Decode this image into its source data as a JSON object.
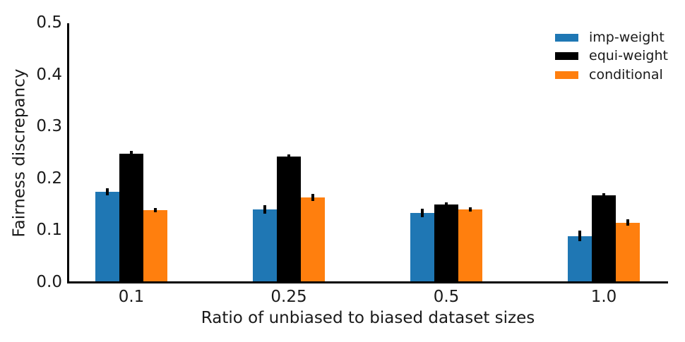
{
  "chart_data": {
    "type": "bar",
    "title": "",
    "xlabel": "Ratio of unbiased to biased dataset sizes",
    "ylabel": "Fairness discrepancy",
    "categories": [
      "0.1",
      "0.25",
      "0.5",
      "1.0"
    ],
    "series": [
      {
        "name": "imp-weight",
        "color": "#1f77b4",
        "values": [
          0.175,
          0.141,
          0.134,
          0.09
        ],
        "errors": [
          0.007,
          0.008,
          0.008,
          0.01
        ]
      },
      {
        "name": "equi-weight",
        "color": "#000000",
        "values": [
          0.249,
          0.243,
          0.151,
          0.168
        ],
        "errors": [
          0.005,
          0.004,
          0.004,
          0.004
        ]
      },
      {
        "name": "conditional",
        "color": "#ff7f0e",
        "values": [
          0.14,
          0.164,
          0.141,
          0.116
        ],
        "errors": [
          0.004,
          0.007,
          0.004,
          0.006
        ]
      }
    ],
    "ylim": [
      0.0,
      0.5
    ],
    "yticks": [
      "0.0",
      "0.1",
      "0.2",
      "0.3",
      "0.4",
      "0.5"
    ],
    "legend_position": "upper right",
    "grid": false,
    "error_bar_color": "#000000",
    "axis_color": "#000000",
    "text_color": "#1a1a1a",
    "background_color": "#ffffff"
  }
}
